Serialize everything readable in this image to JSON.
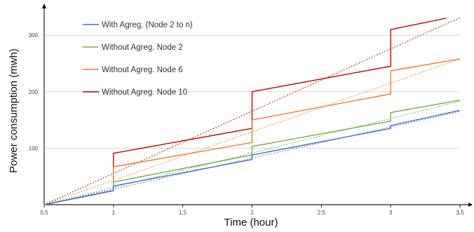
{
  "chart_data": {
    "type": "line",
    "title": "",
    "xlabel": "Time  (hour)",
    "ylabel": "Power consumption  (mwh)",
    "xlim": [
      0.5,
      3.5
    ],
    "ylim": [
      0,
      335
    ],
    "x_ticks": [
      "0,5",
      "1",
      "1,5",
      "2",
      "2,5",
      "3",
      "3,5"
    ],
    "x_tick_values": [
      0.5,
      1,
      1.5,
      2,
      2.5,
      3,
      3.5
    ],
    "y_ticks": [
      "100",
      "200",
      "300"
    ],
    "y_tick_values": [
      100,
      200,
      300
    ],
    "grid": "horizontal",
    "legend_position": "top-left",
    "series": [
      {
        "name": "With Agreg. (Node 2 to n)",
        "color": "#4472C4",
        "points": [
          [
            0.5,
            0
          ],
          [
            1.0,
            25
          ],
          [
            1.0,
            33
          ],
          [
            2.0,
            80
          ],
          [
            2.0,
            88
          ],
          [
            3.0,
            135
          ],
          [
            3.0,
            140
          ],
          [
            3.5,
            167
          ]
        ],
        "trend": [
          [
            0.5,
            0
          ],
          [
            3.5,
            165
          ]
        ]
      },
      {
        "name": "Without Agreg. Node 2",
        "color": "#70AD47",
        "points": [
          [
            0.5,
            0
          ],
          [
            1.0,
            25
          ],
          [
            1.0,
            40
          ],
          [
            2.0,
            88
          ],
          [
            2.0,
            103
          ],
          [
            3.0,
            148
          ],
          [
            3.0,
            163
          ],
          [
            3.5,
            185
          ]
        ],
        "trend": [
          [
            0.5,
            0
          ],
          [
            3.5,
            183
          ]
        ]
      },
      {
        "name": "Without Agreg. Node 6",
        "color": "#ED7D31",
        "points": [
          [
            0.5,
            0
          ],
          [
            1.0,
            25
          ],
          [
            1.0,
            67
          ],
          [
            2.0,
            110
          ],
          [
            2.0,
            150
          ],
          [
            3.0,
            196
          ],
          [
            3.0,
            237
          ],
          [
            3.5,
            258
          ]
        ],
        "trend": [
          [
            0.5,
            0
          ],
          [
            3.5,
            258
          ]
        ]
      },
      {
        "name": "Without Agreg. Node 10",
        "color": "#C00000",
        "points": [
          [
            0.5,
            0
          ],
          [
            1.0,
            25
          ],
          [
            1.0,
            91
          ],
          [
            2.0,
            135
          ],
          [
            2.0,
            200
          ],
          [
            3.0,
            245
          ],
          [
            3.0,
            310
          ],
          [
            3.4,
            330
          ]
        ],
        "trend": [
          [
            0.5,
            0
          ],
          [
            3.5,
            331
          ]
        ]
      }
    ]
  }
}
